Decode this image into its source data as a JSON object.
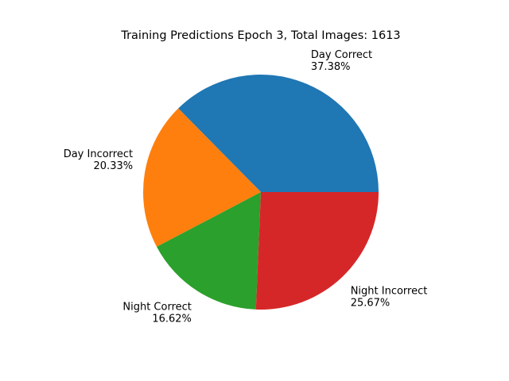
{
  "chart_data": {
    "type": "pie",
    "title": "Training Predictions Epoch 3, Total Images: 1613",
    "start_angle_deg": 0,
    "direction": "counterclockwise",
    "slices": [
      {
        "label": "Day Correct",
        "percent_label": "37.38%",
        "value": 37.38,
        "color": "#1f77b4"
      },
      {
        "label": "Day Incorrect",
        "percent_label": "20.33%",
        "value": 20.33,
        "color": "#ff7f0e"
      },
      {
        "label": "Night Correct",
        "percent_label": "16.62%",
        "value": 16.62,
        "color": "#2ca02c"
      },
      {
        "label": "Night Incorrect",
        "percent_label": "25.67%",
        "value": 25.67,
        "color": "#d62728"
      }
    ]
  }
}
